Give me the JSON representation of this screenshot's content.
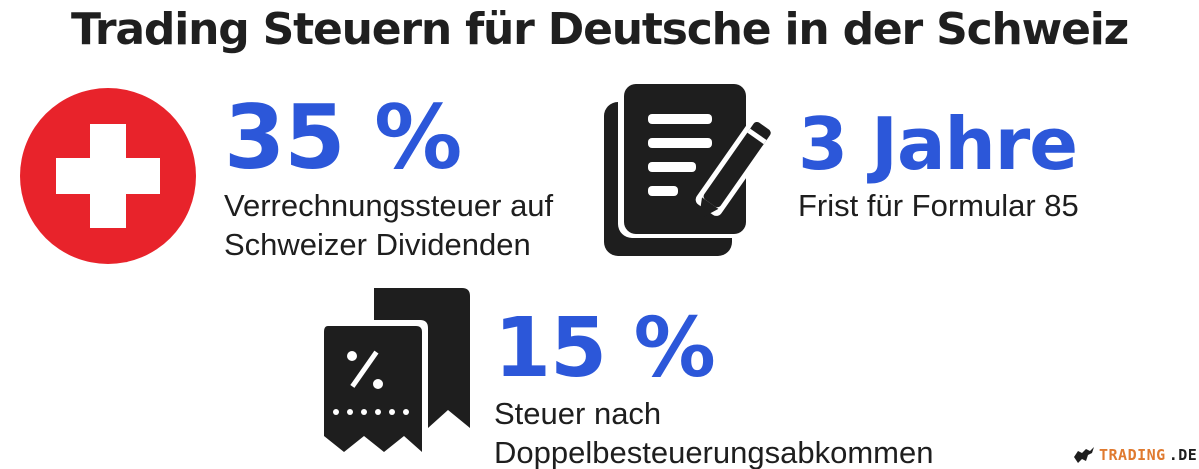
{
  "title": "Trading Steuern für Deutsche in der Schweiz",
  "stats": [
    {
      "value": "35 %",
      "desc_lines": [
        "Verrechnungssteuer auf",
        "Schweizer Dividenden"
      ],
      "icon": "swiss-flag-icon"
    },
    {
      "value": "3 Jahre",
      "desc_lines": [
        "Frist für Formular 85"
      ],
      "icon": "document-pen-icon"
    },
    {
      "value": "15 %",
      "desc_lines": [
        "Steuer nach",
        "Doppelbesteuerungsabkommen"
      ],
      "icon": "tax-receipt-icon"
    }
  ],
  "logo": {
    "part1": "TRADING",
    "part2": ".DE",
    "icon": "bull-icon"
  },
  "colors": {
    "accent": "#2c57d9",
    "flag_red": "#e8232b",
    "dark": "#1e1e1e",
    "logo_orange": "#e07a2f"
  }
}
